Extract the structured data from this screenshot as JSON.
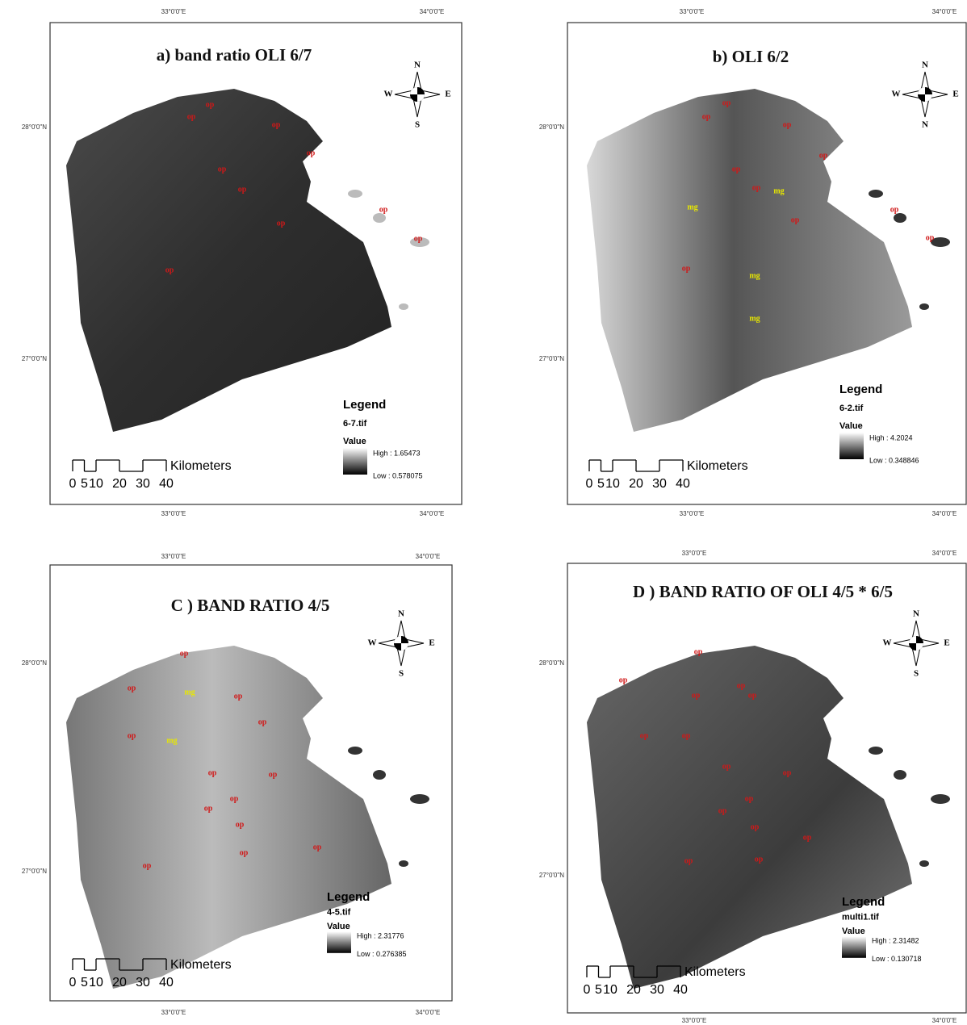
{
  "panels": [
    {
      "title": "a) band ratio OLI 6/7",
      "lon_labels": [
        "33°0'0\"E",
        "34°0'0\"E"
      ],
      "lat_labels": [
        "28°0'0\"N",
        "27°0'0\"N"
      ],
      "compass": {
        "n": "N",
        "w": "W",
        "e": "E",
        "s": "S"
      },
      "legend": {
        "title": "Legend",
        "layer": "6-7.tif",
        "field": "Value",
        "high": "High : 1.65473",
        "low": "Low : 0.578075"
      },
      "scale": {
        "ticks": [
          0,
          5,
          10,
          20,
          30,
          40
        ],
        "unit": "Kilometers"
      },
      "labels": [
        "op",
        "op",
        "op",
        "op",
        "op",
        "op",
        "op",
        "op",
        "op",
        "op"
      ]
    },
    {
      "title": "b)  OLI 6/2",
      "lon_labels": [
        "33°0'0\"E",
        "34°0'0\"E"
      ],
      "lat_labels": [
        "28°0'0\"N",
        "27°0'0\"N"
      ],
      "compass": {
        "n": "N",
        "w": "W",
        "e": "E",
        "s": "N"
      },
      "legend": {
        "title": "Legend",
        "layer": "6-2.tif",
        "field": "Value",
        "high": "High : 4.2024",
        "low": "Low : 0.348846"
      },
      "scale": {
        "ticks": [
          0,
          5,
          10,
          20,
          30,
          40
        ],
        "unit": "Kilometers"
      },
      "labels": [
        "op",
        "op",
        "op",
        "op",
        "op",
        "op",
        "op",
        "op",
        "op",
        "op",
        "mg",
        "mg",
        "mg",
        "mg"
      ]
    },
    {
      "title": "C )  BAND  RATIO 4/5",
      "lon_labels": [
        "33°0'0\"E",
        "34°0'0\"E"
      ],
      "lat_labels": [
        "28°0'0\"N",
        "27°0'0\"N"
      ],
      "compass": {
        "n": "N",
        "w": "W",
        "e": "E",
        "s": "S"
      },
      "legend": {
        "title": "Legend",
        "layer": "4-5.tif",
        "field": "Value",
        "high": "High : 2.31776",
        "low": "Low : 0.276385"
      },
      "scale": {
        "ticks": [
          0,
          5,
          10,
          20,
          30,
          40
        ],
        "unit": "Kilometers"
      },
      "labels": [
        "op",
        "op",
        "mg",
        "op",
        "op",
        "op",
        "mg",
        "op",
        "op",
        "op",
        "op",
        "op",
        "op",
        "op",
        "op"
      ]
    },
    {
      "title": "D )  BAND  RATIO OF OLI 4/5 * 6/5",
      "lon_labels": [
        "33°0'0\"E",
        "34°0'0\"E"
      ],
      "lat_labels": [
        "28°0'0\"N",
        "27°0'0\"N"
      ],
      "compass": {
        "n": "N",
        "w": "W",
        "e": "E",
        "s": "S"
      },
      "legend": {
        "title": "Legend",
        "layer": "multi1.tif",
        "field": "Value",
        "high": "High : 2.31482",
        "low": "Low : 0.130718"
      },
      "scale": {
        "ticks": [
          0,
          5,
          10,
          20,
          30,
          40
        ],
        "unit": "Kilometers"
      },
      "labels": [
        "op",
        "op",
        "op",
        "op",
        "op",
        "op",
        "op",
        "op",
        "op",
        "op",
        "op",
        "op",
        "op",
        "op",
        "op"
      ]
    }
  ]
}
